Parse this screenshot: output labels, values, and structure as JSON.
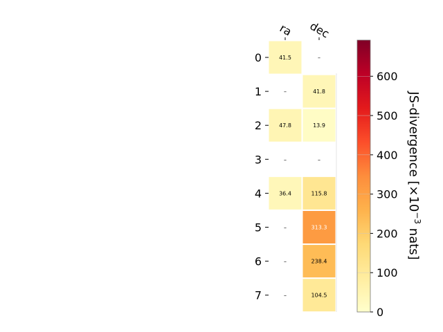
{
  "chart_data": {
    "type": "heatmap",
    "columns": [
      "ra",
      "dec"
    ],
    "rows": [
      "0",
      "1",
      "2",
      "3",
      "4",
      "5",
      "6",
      "7"
    ],
    "values": [
      [
        41.5,
        null
      ],
      [
        null,
        41.8
      ],
      [
        47.8,
        13.9
      ],
      [
        null,
        null
      ],
      [
        36.4,
        115.8
      ],
      [
        null,
        313.3
      ],
      [
        null,
        238.4
      ],
      [
        null,
        104.5
      ]
    ],
    "labels": [
      [
        "41.5",
        "–"
      ],
      [
        "–",
        "41.8"
      ],
      [
        "47.8",
        "13.9"
      ],
      [
        "–",
        "–"
      ],
      [
        "36.4",
        "115.8"
      ],
      [
        "–",
        "313.3"
      ],
      [
        "–",
        "238.4"
      ],
      [
        "–",
        "104.5"
      ]
    ],
    "colorbar": {
      "label_prefix": "JS-divergence [×10",
      "label_exponent": "−3",
      "label_suffix": " nats]",
      "min": 0,
      "max": 692,
      "ticks": [
        0,
        100,
        200,
        300,
        400,
        500,
        600
      ],
      "colormap": "YlOrRd"
    }
  }
}
